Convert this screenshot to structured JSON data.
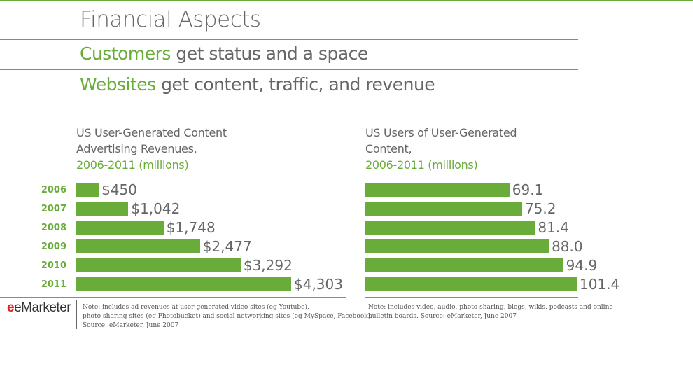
{
  "title": "Financial Aspects",
  "line1": {
    "highlight": "Customers",
    "rest": " get status and a space"
  },
  "line2": {
    "highlight": "Websites",
    "rest": " get content, traffic, and revenue"
  },
  "logo": "eMarketer",
  "colors": {
    "accent": "#6aac3a",
    "text": "#666666"
  },
  "chart_data": [
    {
      "type": "bar",
      "orientation": "horizontal",
      "title_lines": [
        "US User-Generated Content",
        "Advertising Revenues,"
      ],
      "subtitle": "2006-2011 (millions)",
      "categories": [
        "2006",
        "2007",
        "2008",
        "2009",
        "2010",
        "2011"
      ],
      "values": [
        450,
        1042,
        1748,
        2477,
        3292,
        4303
      ],
      "labels": [
        "$450",
        "$1,042",
        "$1,748",
        "$2,477",
        "$3,292",
        "$4,303"
      ],
      "note": [
        "Note: includes ad revenues at user-generated video sites (eg Youtube),",
        "photo-sharing sites (eg Photobucket) and social networking sites (eg MySpace, Facebook).",
        "Source: eMarketer, June 2007"
      ]
    },
    {
      "type": "bar",
      "orientation": "horizontal",
      "title_lines": [
        "US Users of User-Generated",
        "Content,"
      ],
      "subtitle": "2006-2011 (millions)",
      "categories": [
        "2006",
        "2007",
        "2008",
        "2009",
        "2010",
        "2011"
      ],
      "values": [
        69.1,
        75.2,
        81.4,
        88.0,
        94.9,
        101.4
      ],
      "labels": [
        "69.1",
        "75.2",
        "81.4",
        "88.0",
        "94.9",
        "101.4"
      ],
      "note": [
        "Note: includes video, audio, photo sharing, blogs, wikis, podcasts and online",
        "bulletin boards. Source: eMarketer, June 2007"
      ]
    }
  ]
}
